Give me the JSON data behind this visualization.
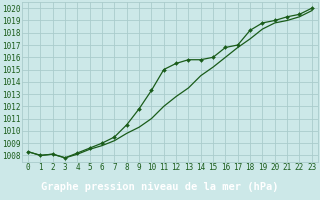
{
  "background_color": "#cce8e8",
  "plot_bg_color": "#cce8e8",
  "grid_color": "#aacccc",
  "line_color": "#1a5c1a",
  "title": "Graphe pression niveau de la mer (hPa)",
  "xlim": [
    -0.5,
    23.5
  ],
  "ylim": [
    1007.5,
    1020.5
  ],
  "yticks": [
    1008,
    1009,
    1010,
    1011,
    1012,
    1013,
    1014,
    1015,
    1016,
    1017,
    1018,
    1019,
    1020
  ],
  "xticks": [
    0,
    1,
    2,
    3,
    4,
    5,
    6,
    7,
    8,
    9,
    10,
    11,
    12,
    13,
    14,
    15,
    16,
    17,
    18,
    19,
    20,
    21,
    22,
    23
  ],
  "series1_x": [
    0,
    1,
    2,
    3,
    4,
    5,
    6,
    7,
    8,
    9,
    10,
    11,
    12,
    13,
    14,
    15,
    16,
    17,
    18,
    19,
    20,
    21,
    22,
    23
  ],
  "series1_y": [
    1008.3,
    1008.0,
    1008.1,
    1007.8,
    1008.2,
    1008.6,
    1009.0,
    1009.5,
    1010.5,
    1011.8,
    1013.3,
    1015.0,
    1015.5,
    1015.8,
    1015.8,
    1016.0,
    1016.8,
    1017.0,
    1018.2,
    1018.8,
    1019.0,
    1019.3,
    1019.5,
    1020.0
  ],
  "series2_x": [
    0,
    1,
    2,
    3,
    4,
    5,
    6,
    7,
    8,
    9,
    10,
    11,
    12,
    13,
    14,
    15,
    16,
    17,
    18,
    19,
    20,
    21,
    22,
    23
  ],
  "series2_y": [
    1008.3,
    1008.0,
    1008.1,
    1007.8,
    1008.1,
    1008.5,
    1008.8,
    1009.2,
    1009.8,
    1010.3,
    1011.0,
    1012.0,
    1012.8,
    1013.5,
    1014.5,
    1015.2,
    1016.0,
    1016.8,
    1017.5,
    1018.3,
    1018.8,
    1019.0,
    1019.3,
    1019.8
  ],
  "title_fontsize": 7.5,
  "tick_fontsize": 5.5,
  "title_bg_color": "#2a6b2a",
  "title_text_color": "#ffffff"
}
